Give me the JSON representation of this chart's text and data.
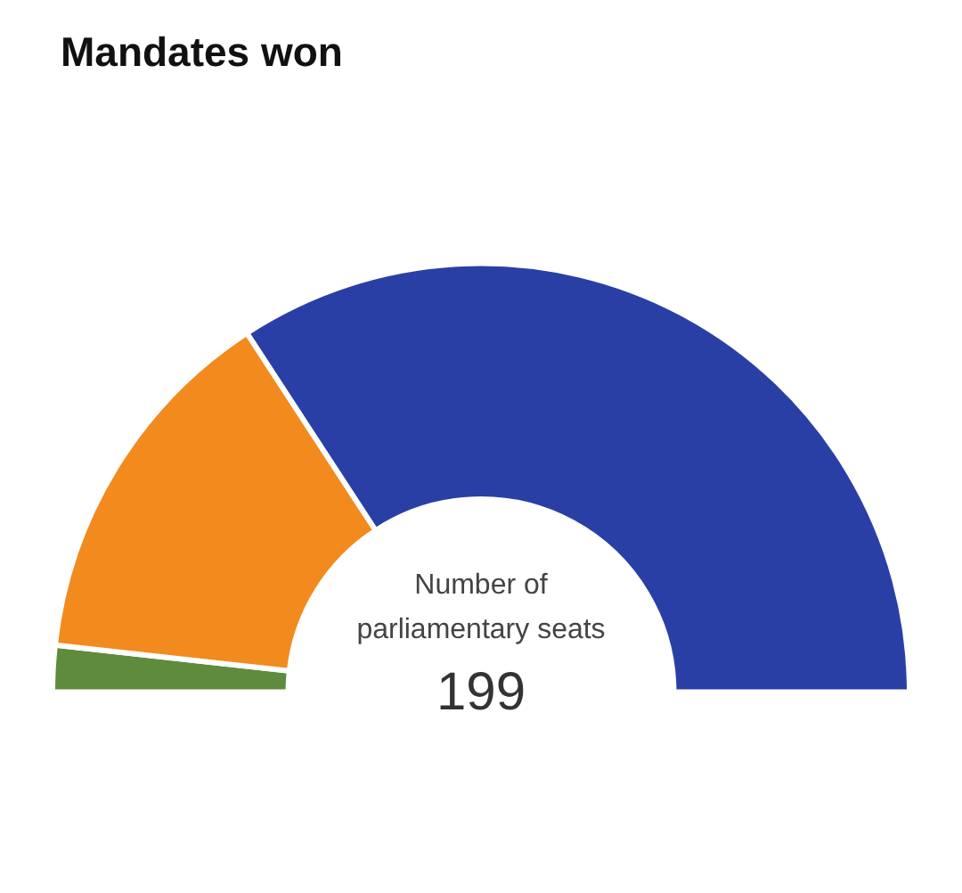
{
  "chart_data": {
    "type": "donut",
    "title": "Mandates won",
    "categories": [
      null,
      null,
      null
    ],
    "values": [
      3.5,
      28.1,
      68.4
    ],
    "colors": [
      "#5f8b3c",
      "#f28a1e",
      "#2a3fa6"
    ],
    "annotations": [
      "Number of parliamentary seats",
      "199"
    ],
    "legend": false
  }
}
